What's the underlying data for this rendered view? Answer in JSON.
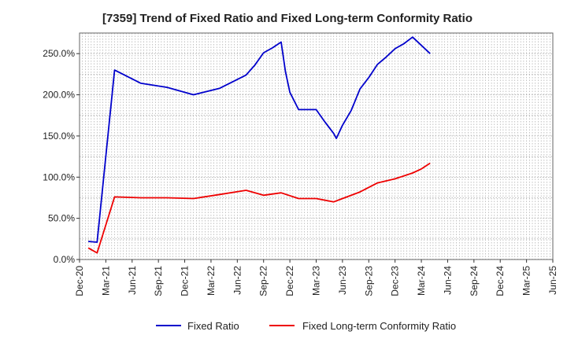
{
  "chart_data": {
    "type": "line",
    "title": "[7359]  Trend of Fixed Ratio and Fixed Long-term Conformity Ratio",
    "xlabel": "",
    "ylabel": "",
    "ylim": [
      0,
      275
    ],
    "y_ticks": [
      0,
      50,
      100,
      150,
      200,
      250
    ],
    "y_tick_labels": [
      "0.0%",
      "50.0%",
      "100.0%",
      "150.0%",
      "200.0%",
      "250.0%"
    ],
    "x_ticks": [
      "Dec-20",
      "Mar-21",
      "Jun-21",
      "Sep-21",
      "Dec-21",
      "Mar-22",
      "Jun-22",
      "Sep-22",
      "Dec-22",
      "Mar-23",
      "Jun-23",
      "Sep-23",
      "Dec-23",
      "Mar-24",
      "Jun-24",
      "Sep-24",
      "Dec-24",
      "Mar-25",
      "Jun-25"
    ],
    "grid": true,
    "legend_position": "bottom",
    "series": [
      {
        "name": "Fixed Ratio",
        "color": "#0000cc",
        "points": [
          [
            1,
            22
          ],
          [
            2,
            21
          ],
          [
            4,
            230
          ],
          [
            7,
            214
          ],
          [
            10,
            209
          ],
          [
            13,
            200
          ],
          [
            16,
            208
          ],
          [
            19,
            224
          ],
          [
            20,
            236
          ],
          [
            21,
            251
          ],
          [
            22,
            257
          ],
          [
            23,
            264
          ],
          [
            23.5,
            228
          ],
          [
            24,
            203
          ],
          [
            25,
            182
          ],
          [
            26,
            182
          ],
          [
            27,
            182
          ],
          [
            28,
            167
          ],
          [
            29,
            153
          ],
          [
            29.3,
            147
          ],
          [
            30,
            163
          ],
          [
            31,
            181
          ],
          [
            32,
            207
          ],
          [
            33,
            221
          ],
          [
            34,
            237
          ],
          [
            35,
            246
          ],
          [
            36,
            256
          ],
          [
            37,
            262
          ],
          [
            38,
            270
          ],
          [
            39,
            260
          ],
          [
            40,
            250
          ]
        ]
      },
      {
        "name": "Fixed Long-term Conformity Ratio",
        "color": "#ee0000",
        "points": [
          [
            1,
            14
          ],
          [
            2,
            8
          ],
          [
            4,
            76
          ],
          [
            7,
            75
          ],
          [
            10,
            75
          ],
          [
            13,
            74
          ],
          [
            16,
            79
          ],
          [
            19,
            84
          ],
          [
            21,
            78
          ],
          [
            23,
            81
          ],
          [
            25,
            74
          ],
          [
            27,
            74
          ],
          [
            29,
            70
          ],
          [
            30,
            74
          ],
          [
            32,
            82
          ],
          [
            34,
            93
          ],
          [
            36,
            98
          ],
          [
            38,
            105
          ],
          [
            39,
            110
          ],
          [
            40,
            117
          ]
        ]
      }
    ]
  }
}
